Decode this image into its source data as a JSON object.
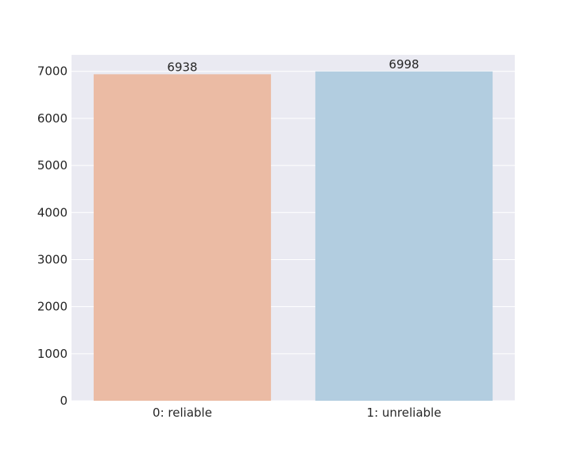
{
  "chart_data": {
    "type": "bar",
    "categories": [
      "0: reliable",
      "1: unreliable"
    ],
    "values": [
      6938,
      6998
    ],
    "data_labels": [
      "6938",
      "6998"
    ],
    "ylim": [
      0,
      7350
    ],
    "yticks": [
      0,
      1000,
      2000,
      3000,
      4000,
      5000,
      6000,
      7000
    ],
    "ytick_labels": [
      "0",
      "1000",
      "2000",
      "3000",
      "4000",
      "5000",
      "6000",
      "7000"
    ],
    "colors": [
      "#ebbba4",
      "#b2cde0"
    ],
    "plot_background": "#eaeaf2",
    "grid": true,
    "grid_color": "#ffffff"
  }
}
